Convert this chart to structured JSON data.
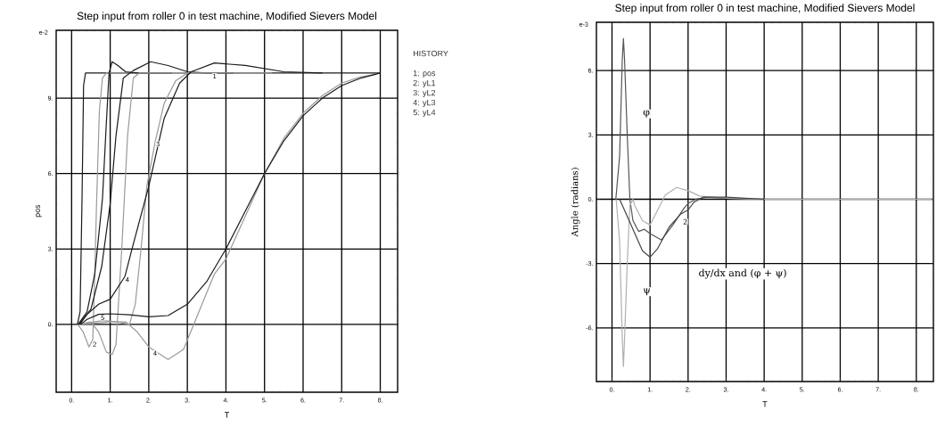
{
  "chart_data": [
    {
      "type": "line",
      "title": "Step input from roller 0 in test machine, Modified Sievers Model",
      "xlabel": "T",
      "ylabel": "pos",
      "xlim": [
        -0.4,
        8.45
      ],
      "ylim": [
        -2.7,
        11.7
      ],
      "xticks": [
        {
          "value": 0,
          "label": "0."
        },
        {
          "value": 1,
          "label": "1."
        },
        {
          "value": 2,
          "label": "2."
        },
        {
          "value": 3,
          "label": "3."
        },
        {
          "value": 4,
          "label": "4."
        },
        {
          "value": 5,
          "label": "5."
        },
        {
          "value": 6,
          "label": "6."
        },
        {
          "value": 7,
          "label": "7."
        },
        {
          "value": 8,
          "label": "8."
        }
      ],
      "yticks": [
        {
          "value": 0,
          "label": "0."
        },
        {
          "value": 3,
          "label": "3."
        },
        {
          "value": 6,
          "label": "6."
        },
        {
          "value": 9,
          "label": "9."
        }
      ],
      "grid": true,
      "series": [
        {
          "color": "#1a1a1a",
          "x": [
            0.15,
            0.22,
            0.27,
            0.31,
            0.36,
            8
          ],
          "values": [
            0,
            0.5,
            5,
            9.5,
            10,
            10
          ]
        },
        {
          "color": "#9a9a9a",
          "x": [
            0.16,
            0.3,
            0.45,
            0.55,
            0.6,
            0.65,
            0.72,
            0.8,
            0.9,
            2.9
          ],
          "values": [
            0,
            -0.3,
            -0.9,
            -0.6,
            2,
            5,
            8.5,
            9.8,
            10,
            10
          ]
        },
        {
          "color": "#1a1a1a",
          "x": [
            0.17,
            0.4,
            0.6,
            0.8,
            0.9,
            0.97,
            1.05,
            1.2,
            1.4,
            1.7,
            2.6
          ],
          "values": [
            0,
            0.5,
            2,
            5,
            8,
            10,
            10.45,
            10.3,
            10.05,
            10,
            10
          ]
        },
        {
          "color": "#9a9a9a",
          "x": [
            0.18,
            0.5,
            0.7,
            0.9,
            1.05,
            1.15,
            1.3,
            1.45,
            1.6,
            1.75,
            3.3
          ],
          "values": [
            0,
            0.1,
            -0.3,
            -1.1,
            -1.2,
            -0.8,
            3,
            7.5,
            9.8,
            10,
            10
          ]
        },
        {
          "color": "#1a1a1a",
          "x": [
            0.19,
            0.5,
            0.78,
            1.0,
            1.15,
            1.34,
            1.6,
            2.05,
            2.5,
            3.0,
            3.5,
            4.2
          ],
          "values": [
            0,
            0.6,
            2.3,
            4.8,
            7.5,
            9.8,
            10.1,
            10.45,
            10.3,
            10.05,
            10,
            10
          ]
        },
        {
          "color": "#9a9a9a",
          "x": [
            0.2,
            0.8,
            1.2,
            1.5,
            1.65,
            1.8,
            1.95,
            2.17,
            2.4,
            2.7,
            3.0,
            5.2
          ],
          "values": [
            0,
            0.15,
            0.1,
            0,
            0.8,
            3,
            5.5,
            7.3,
            8.8,
            9.7,
            10,
            10
          ]
        },
        {
          "color": "#1a1a1a",
          "x": [
            0.21,
            0.4,
            0.7,
            1.0,
            1.38,
            1.6,
            2.0,
            2.4,
            2.8,
            3.1,
            3.7,
            4.5,
            5.5,
            6.5
          ],
          "values": [
            0,
            0.4,
            0.8,
            1.0,
            1.9,
            3.2,
            5.5,
            8.2,
            9.6,
            10.05,
            10.4,
            10.3,
            10.05,
            10
          ]
        },
        {
          "color": "#9a9a9a",
          "x": [
            0.22,
            1.0,
            1.4,
            1.7,
            2.0,
            2.5,
            2.9,
            3.3,
            3.7,
            4.0,
            4.5,
            5.0,
            5.5,
            6.0,
            6.5,
            7.0,
            7.5,
            7.9
          ],
          "values": [
            0,
            0.1,
            0.1,
            -0.3,
            -0.9,
            -1.4,
            -1.0,
            0.5,
            2.0,
            2.6,
            4.3,
            6.0,
            7.4,
            8.4,
            9.1,
            9.6,
            9.85,
            9.95
          ]
        },
        {
          "color": "#1a1a1a",
          "x": [
            0.23,
            0.4,
            0.7,
            1.0,
            1.5,
            2.0,
            2.5,
            3.0,
            3.5,
            4.0,
            4.5,
            5.0,
            5.5,
            6.0,
            6.5,
            7.0,
            7.5,
            8
          ],
          "values": [
            0,
            0.2,
            0.4,
            0.42,
            0.38,
            0.3,
            0.35,
            0.8,
            1.7,
            3.0,
            4.5,
            6.0,
            7.3,
            8.3,
            9.0,
            9.5,
            9.8,
            10
          ]
        }
      ],
      "annotations": [
        "e-2",
        "HISTORY",
        "1: pos",
        "2: yL1",
        "3: yL2",
        "4: yL3",
        "5: yL4",
        {
          "text": "1",
          "x": 3.64,
          "y": 10.0
        },
        {
          "text": "2",
          "x": 0.53,
          "y": -0.67
        },
        {
          "text": "3",
          "x": 2.17,
          "y": 7.3
        },
        {
          "text": "4",
          "x": 1.38,
          "y": 1.9
        },
        {
          "text": "5",
          "x": 0.74,
          "y": 0.39
        },
        {
          "text": "4",
          "x": 2.1,
          "y": -1.03
        }
      ]
    },
    {
      "type": "line",
      "title": "Step input from roller 0 in test machine, Modified Sievers Model",
      "xlabel": "T",
      "ylabel": "Angle (radians)",
      "xlim": [
        -0.41,
        8.45
      ],
      "ylim": [
        -8.5,
        8.25
      ],
      "xticks": [
        {
          "value": 0,
          "label": "0."
        },
        {
          "value": 1,
          "label": "1."
        },
        {
          "value": 2,
          "label": "2."
        },
        {
          "value": 3,
          "label": "3."
        },
        {
          "value": 4,
          "label": "4."
        },
        {
          "value": 5,
          "label": "5."
        },
        {
          "value": 6,
          "label": "6."
        },
        {
          "value": 7,
          "label": "7."
        },
        {
          "value": 8,
          "label": "8."
        }
      ],
      "yticks": [
        {
          "value": -6,
          "label": "-6."
        },
        {
          "value": -3,
          "label": "-3."
        },
        {
          "value": 0,
          "label": "0."
        },
        {
          "value": 3,
          "label": "3."
        },
        {
          "value": 6,
          "label": "6."
        }
      ],
      "grid": true,
      "series": [
        {
          "color": "#555555",
          "x": [
            0.1,
            0.2,
            0.27,
            0.3,
            0.33,
            0.4,
            0.47,
            0.55,
            0.7,
            0.85,
            1.0,
            1.3,
            1.6,
            1.9,
            2.0,
            2.2,
            2.5,
            3.0,
            4.0,
            8.45
          ],
          "values": [
            0,
            2,
            6.5,
            7.5,
            6.5,
            3,
            0,
            -1.0,
            -1.5,
            -1.4,
            -1.6,
            -1.9,
            -1.2,
            -0.4,
            -0.2,
            0,
            0.1,
            0.05,
            0,
            0
          ]
        },
        {
          "color": "#b0b0b0",
          "x": [
            0.11,
            0.2,
            0.27,
            0.3,
            0.33,
            0.4,
            0.47,
            0.55,
            0.6,
            0.8,
            1.0,
            1.2,
            1.4,
            1.7,
            2.0,
            2.3,
            3.0,
            4.0,
            8.4
          ],
          "values": [
            0,
            -2,
            -6.5,
            -7.8,
            -6.5,
            -3,
            -0.3,
            0,
            -0.3,
            -1.0,
            -1.2,
            -0.5,
            0.2,
            0.55,
            0.4,
            0.15,
            0.05,
            0,
            0
          ]
        },
        {
          "color": "#444444",
          "x": [
            0.2,
            0.5,
            0.8,
            1.0,
            1.2,
            1.5,
            1.8,
            2.0,
            2.15,
            2.4,
            3.0,
            4.0
          ],
          "values": [
            0,
            -1.2,
            -2.4,
            -2.7,
            -2.3,
            -1.3,
            -0.7,
            -0.5,
            -0.15,
            0.1,
            0.1,
            0
          ]
        }
      ],
      "annotations": [
        "e-3",
        "φ",
        "ψ",
        "dy/dx and (φ + ψ)",
        {
          "text": "2",
          "x": 1.85,
          "y": -0.9
        }
      ]
    }
  ]
}
